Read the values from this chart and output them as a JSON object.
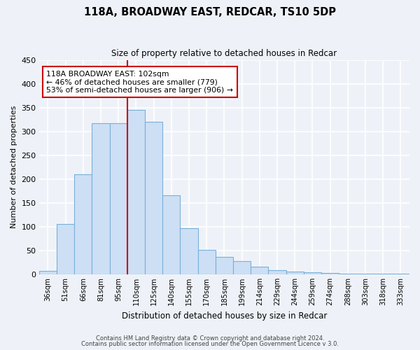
{
  "title": "118A, BROADWAY EAST, REDCAR, TS10 5DP",
  "subtitle": "Size of property relative to detached houses in Redcar",
  "xlabel": "Distribution of detached houses by size in Redcar",
  "ylabel": "Number of detached properties",
  "bar_labels": [
    "36sqm",
    "51sqm",
    "66sqm",
    "81sqm",
    "95sqm",
    "110sqm",
    "125sqm",
    "140sqm",
    "155sqm",
    "170sqm",
    "185sqm",
    "199sqm",
    "214sqm",
    "229sqm",
    "244sqm",
    "259sqm",
    "274sqm",
    "288sqm",
    "303sqm",
    "318sqm",
    "333sqm"
  ],
  "bar_values": [
    7,
    105,
    210,
    317,
    317,
    345,
    320,
    165,
    97,
    51,
    36,
    28,
    16,
    9,
    5,
    4,
    2,
    1,
    1,
    1,
    1
  ],
  "bar_color": "#ccdff5",
  "bar_edge_color": "#7ab0d8",
  "vline_x": 4.5,
  "vline_color": "#cc0000",
  "ylim": [
    0,
    450
  ],
  "yticks": [
    0,
    50,
    100,
    150,
    200,
    250,
    300,
    350,
    400,
    450
  ],
  "annotation_text": "118A BROADWAY EAST: 102sqm\n← 46% of detached houses are smaller (779)\n53% of semi-detached houses are larger (906) →",
  "annotation_box_color": "#ffffff",
  "annotation_box_edge": "#cc0000",
  "footer_line1": "Contains HM Land Registry data © Crown copyright and database right 2024.",
  "footer_line2": "Contains public sector information licensed under the Open Government Licence v 3.0.",
  "bg_color": "#eef2f8",
  "grid_color": "#ffffff",
  "plot_bg_color": "#eef2f8"
}
